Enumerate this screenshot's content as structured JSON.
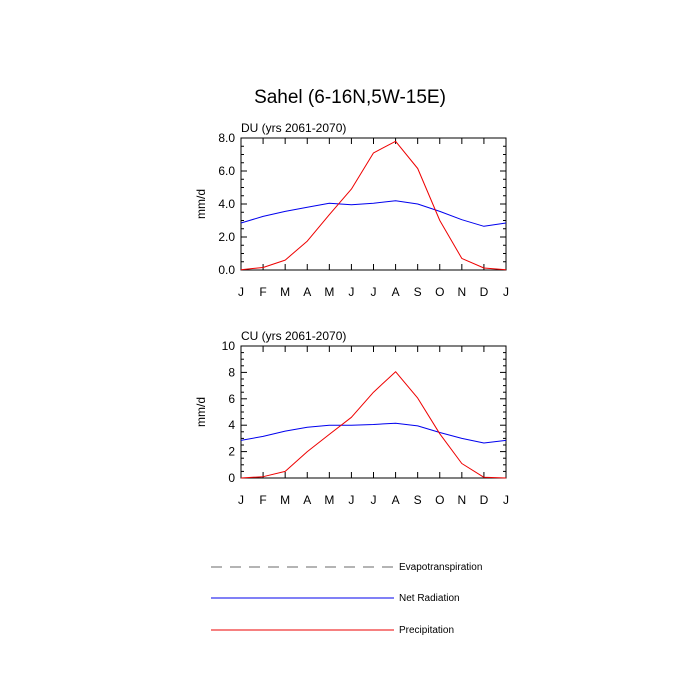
{
  "title": "Sahel (6-16N,5W-15E)",
  "legend": {
    "items": [
      {
        "label": "Evapotranspiration",
        "color": "#888888",
        "style": "dashed"
      },
      {
        "label": "Net Radiation",
        "color": "#0000ee",
        "style": "solid"
      },
      {
        "label": "Precipitation",
        "color": "#ee0000",
        "style": "solid"
      }
    ]
  },
  "chart_data": [
    {
      "type": "line",
      "title": "DU (yrs 2061-2070)",
      "ylabel": "mm/d",
      "xlabel": "",
      "categories": [
        "J",
        "F",
        "M",
        "A",
        "M",
        "J",
        "J",
        "A",
        "S",
        "O",
        "N",
        "D",
        "J"
      ],
      "ylim": [
        0,
        8
      ],
      "yticks": [
        0,
        2,
        4,
        6,
        8
      ],
      "yticklabels": [
        "0.0",
        "2.0",
        "4.0",
        "6.0",
        "8.0"
      ],
      "series": [
        {
          "name": "Net Radiation",
          "color": "#0000ee",
          "values": [
            2.85,
            3.25,
            3.55,
            3.8,
            4.05,
            3.95,
            4.05,
            4.2,
            4.0,
            3.55,
            3.05,
            2.65,
            2.85
          ]
        },
        {
          "name": "Precipitation",
          "color": "#ee0000",
          "values": [
            0.02,
            0.15,
            0.6,
            1.75,
            3.35,
            4.9,
            7.1,
            7.8,
            6.15,
            3.0,
            0.7,
            0.12,
            0.02
          ]
        }
      ]
    },
    {
      "type": "line",
      "title": "CU (yrs 2061-2070)",
      "ylabel": "mm/d",
      "xlabel": "",
      "categories": [
        "J",
        "F",
        "M",
        "A",
        "M",
        "J",
        "J",
        "A",
        "S",
        "O",
        "N",
        "D",
        "J"
      ],
      "ylim": [
        0,
        10
      ],
      "yticks": [
        0,
        2,
        4,
        6,
        8,
        10
      ],
      "yticklabels": [
        "0",
        "2",
        "4",
        "6",
        "8",
        "10"
      ],
      "series": [
        {
          "name": "Net Radiation",
          "color": "#0000ee",
          "values": [
            2.85,
            3.15,
            3.55,
            3.85,
            4.0,
            4.0,
            4.05,
            4.15,
            3.95,
            3.45,
            3.0,
            2.65,
            2.85
          ]
        },
        {
          "name": "Precipitation",
          "color": "#ee0000",
          "values": [
            0.0,
            0.1,
            0.5,
            2.0,
            3.3,
            4.6,
            6.5,
            8.05,
            6.05,
            3.35,
            1.1,
            0.05,
            0.0
          ]
        }
      ]
    }
  ]
}
